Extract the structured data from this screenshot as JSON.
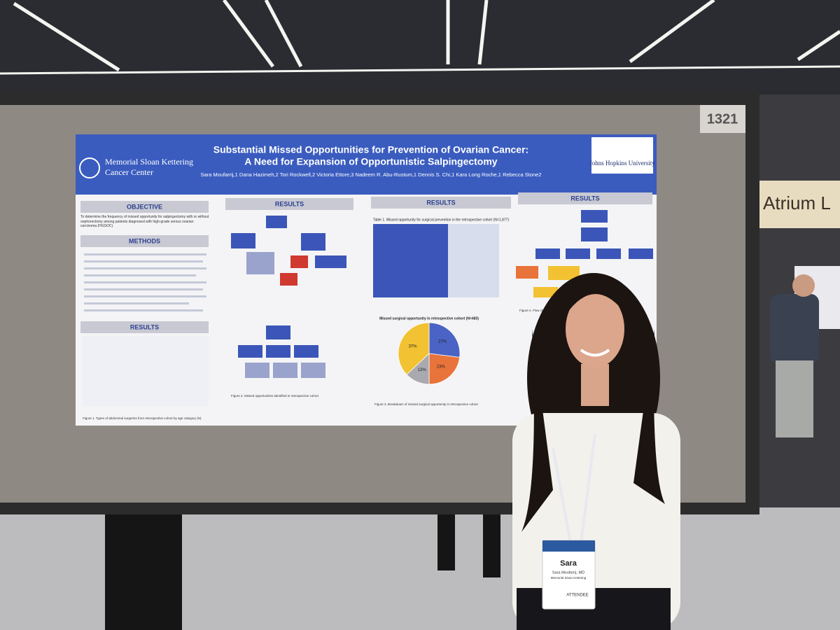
{
  "scene": {
    "booth_number": "1321",
    "sign": "Atrium L"
  },
  "poster": {
    "title": "Substantial Missed Opportunities for Prevention of Ovarian Cancer:",
    "subtitle": "A Need for Expansion of Opportunistic Salpingectomy",
    "authors": "Sara Moufarrij,1 Dana Hazimeh,2 Tori Rockwell,2 Victoria Ettore,3 Nadeem R. Abu-Rustum,1 Dennis S. Chi,1 Kara Long Roche,1 Rebecca Stone2",
    "logo_left": [
      "Memorial Sloan Kettering",
      "Cancer Center"
    ],
    "logo_right": "Johns Hopkins University",
    "headers": [
      "OBJECTIVE",
      "METHODS",
      "RESULTS",
      "RESULTS",
      "RESULTS",
      "RESULTS"
    ],
    "objective_text": "To determine the frequency of missed opportunity for salpingectomy with or without oophorectomy among patients diagnosed with high-grade serous ovarian carcinoma (HGSOC).",
    "table_caption": "Table 1. Missed opportunity for surgical prevention in the retrospective cohort (N=1,877)",
    "pie": {
      "title": "Missed surgical opportunity in retrospective cohort (N=483)",
      "values": [
        27,
        23,
        13,
        37
      ],
      "value_labels": [
        "27%",
        "23%",
        "13%",
        "37%"
      ],
      "colors": [
        "#4a63c4",
        "#e8743b",
        "#a9a9b0",
        "#f2c232"
      ]
    },
    "captions": [
      "Figure 1. Types of abdominal surgeries from retrospective cohort by age category (N)",
      "Figure 2. Missed opportunities identified in retrospective cohort",
      "Figure 3. Breakdown of missed surgical opportunity in retrospective cohort",
      "Figure 4. Flow chart of"
    ]
  },
  "badge": {
    "name": "Sara",
    "full_name": "Sara Moufarrij, MD",
    "org": "Memorial Sloan Kettering",
    "role": "ATTENDEE"
  }
}
